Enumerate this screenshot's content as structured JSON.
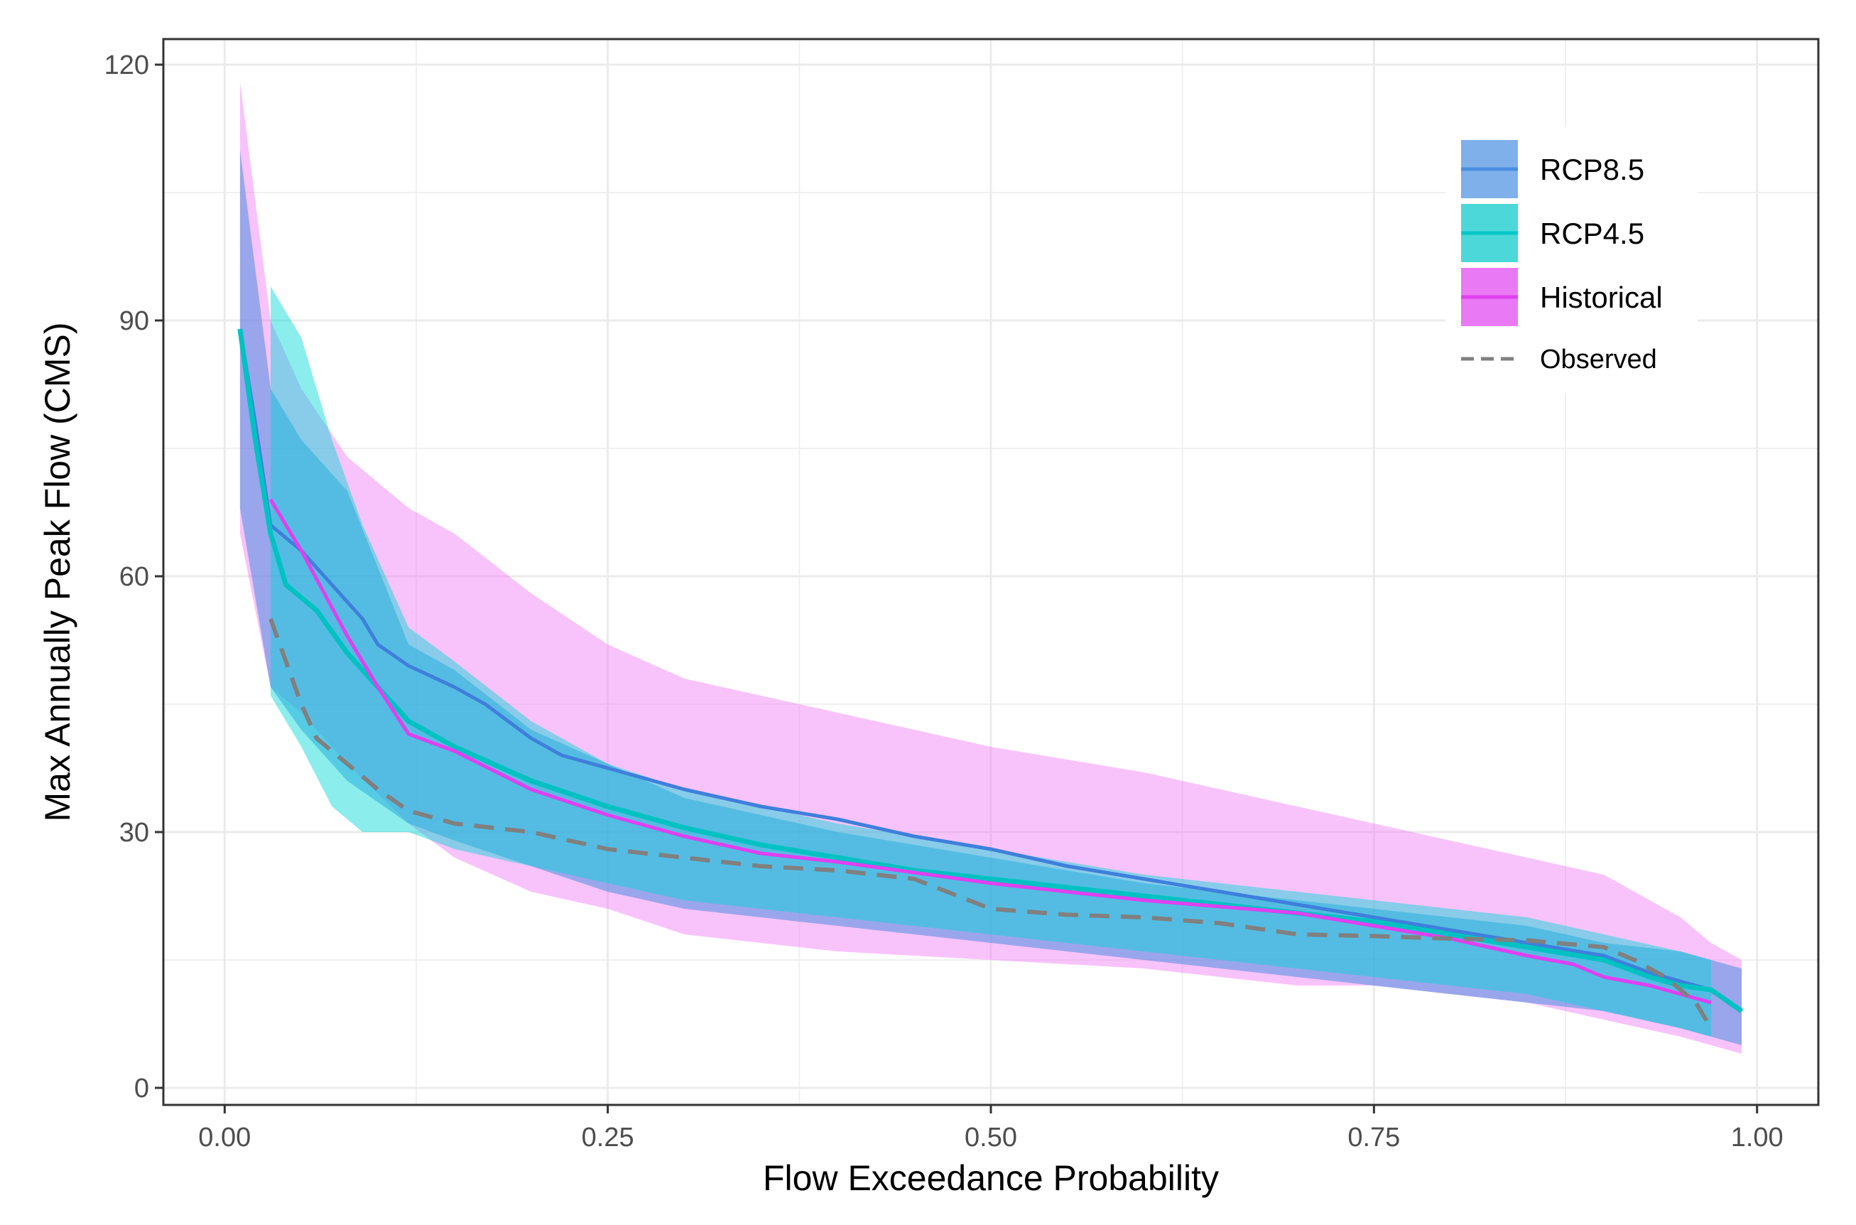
{
  "chart_data": {
    "type": "line",
    "title": "",
    "xlabel": "Flow Exceedance Probability",
    "ylabel": "Max Annually Peak Flow (CMS)",
    "xlim": [
      -0.04,
      1.04
    ],
    "ylim": [
      -2,
      123
    ],
    "xticks": [
      0,
      0.25,
      0.5,
      0.75,
      1
    ],
    "xtick_labels": [
      "0.00",
      "0.25",
      "0.50",
      "0.75",
      "1.00"
    ],
    "yticks": [
      0,
      30,
      60,
      90,
      120
    ],
    "ytick_labels": [
      "0",
      "30",
      "60",
      "90",
      "120"
    ],
    "grid": true,
    "legend_position": "top-right",
    "legend": [
      {
        "key": "rcp85",
        "label": "RCP8.5",
        "color": "#4a8ee0",
        "kind": "ribbon-line"
      },
      {
        "key": "rcp45",
        "label": "RCP4.5",
        "color": "#00c8c8",
        "kind": "ribbon-line"
      },
      {
        "key": "historical",
        "label": "Historical",
        "color": "#e040f0",
        "kind": "ribbon-line"
      },
      {
        "key": "observed",
        "label": "Observed",
        "color": "#808080",
        "kind": "dashed-line"
      }
    ],
    "series": [
      {
        "name": "Historical",
        "color": "#e040f0",
        "fill": "#f07af5",
        "fill_opacity": 0.45,
        "line_width": 5,
        "x": [
          0.01,
          0.03,
          0.05,
          0.08,
          0.12,
          0.15,
          0.2,
          0.25,
          0.3,
          0.4,
          0.5,
          0.6,
          0.7,
          0.75,
          0.8,
          0.85,
          0.9,
          0.95,
          0.97,
          0.99
        ],
        "lower": [
          65,
          47,
          44,
          38,
          31,
          27,
          23,
          21,
          18,
          16,
          15,
          14,
          12,
          12,
          11,
          10,
          8,
          6,
          5,
          4
        ],
        "upper": [
          118,
          90,
          82,
          74,
          68,
          65,
          58,
          52,
          48,
          44,
          40,
          37,
          33,
          31,
          29,
          27,
          25,
          20,
          17,
          15
        ]
      },
      {
        "name": "RCP8.5",
        "color": "#3f7fdc",
        "fill": "#4a8ee0",
        "fill_opacity": 0.55,
        "line_width": 5,
        "x": [
          0.01,
          0.03,
          0.05,
          0.08,
          0.12,
          0.15,
          0.2,
          0.25,
          0.3,
          0.4,
          0.5,
          0.6,
          0.7,
          0.75,
          0.8,
          0.85,
          0.9,
          0.95,
          0.97,
          0.99
        ],
        "lower": [
          68,
          47,
          42,
          36,
          31,
          29,
          26,
          23,
          21,
          19,
          17,
          15,
          13,
          12,
          11,
          10,
          9,
          7,
          6,
          5
        ],
        "upper": [
          110,
          82,
          76,
          70,
          52,
          49,
          42,
          38,
          34,
          30,
          27,
          24,
          22,
          21,
          20,
          19,
          17,
          16,
          15,
          14
        ]
      },
      {
        "name": "RCP4.5",
        "color": "#00c2c2",
        "fill": "#00d6d6",
        "fill_opacity": 0.45,
        "line_width": 7,
        "x": [
          0.03,
          0.05,
          0.07,
          0.09,
          0.12,
          0.15,
          0.2,
          0.25,
          0.3,
          0.4,
          0.5,
          0.6,
          0.7,
          0.75,
          0.8,
          0.85,
          0.9,
          0.95,
          0.97
        ],
        "lower": [
          46,
          40,
          33,
          30,
          30,
          28,
          26,
          24,
          22,
          20,
          18,
          16,
          14,
          13,
          12,
          11,
          9,
          7,
          6
        ],
        "upper": [
          94,
          88,
          76,
          66,
          54,
          50,
          43,
          38,
          35,
          31,
          28,
          25,
          23,
          22,
          21,
          20,
          18,
          16,
          15
        ]
      },
      {
        "name": "RCP8.5 median",
        "color": "#3f7fdc",
        "line_width": 5,
        "x": [
          0.01,
          0.02,
          0.03,
          0.05,
          0.07,
          0.09,
          0.1,
          0.12,
          0.15,
          0.17,
          0.2,
          0.22,
          0.25,
          0.3,
          0.35,
          0.4,
          0.45,
          0.5,
          0.55,
          0.6,
          0.65,
          0.7,
          0.75,
          0.8,
          0.85,
          0.9,
          0.93,
          0.95,
          0.97,
          0.99
        ],
        "y": [
          89,
          78,
          66,
          63,
          59,
          55,
          52,
          49.5,
          47,
          45,
          41,
          39,
          37.5,
          35,
          33,
          31.5,
          29.5,
          28,
          26,
          24.5,
          23,
          21.5,
          20,
          18.5,
          17,
          15.5,
          13.5,
          12.5,
          11.5,
          9
        ]
      },
      {
        "name": "RCP4.5 median",
        "color": "#00c2c2",
        "line_width": 7,
        "x": [
          0.01,
          0.02,
          0.03,
          0.04,
          0.06,
          0.08,
          0.1,
          0.12,
          0.15,
          0.2,
          0.25,
          0.3,
          0.35,
          0.4,
          0.45,
          0.5,
          0.55,
          0.6,
          0.65,
          0.7,
          0.75,
          0.8,
          0.85,
          0.9,
          0.93,
          0.95,
          0.97,
          0.99
        ],
        "y": [
          89,
          76,
          65,
          59,
          56,
          51,
          47,
          43,
          40,
          36,
          33,
          30.5,
          28.5,
          27,
          25.5,
          24.5,
          23.5,
          22.5,
          21.5,
          20.5,
          19.5,
          18,
          16.5,
          15,
          13,
          12,
          11.5,
          9
        ]
      },
      {
        "name": "Historical median",
        "color": "#e040f0",
        "line_width": 5,
        "x": [
          0.03,
          0.05,
          0.08,
          0.1,
          0.12,
          0.15,
          0.2,
          0.25,
          0.3,
          0.35,
          0.4,
          0.5,
          0.6,
          0.7,
          0.75,
          0.8,
          0.85,
          0.88,
          0.9,
          0.93,
          0.95,
          0.97
        ],
        "y": [
          69,
          63,
          53,
          47,
          41.5,
          39.5,
          35,
          32,
          29.5,
          27.5,
          26.5,
          24,
          22,
          20.5,
          19,
          17.5,
          15.5,
          14.5,
          13,
          12,
          11,
          10
        ]
      },
      {
        "name": "Observed",
        "color": "#808080",
        "line_width": 6,
        "dash": "28 16",
        "x": [
          0.03,
          0.04,
          0.05,
          0.06,
          0.08,
          0.1,
          0.12,
          0.15,
          0.2,
          0.25,
          0.3,
          0.35,
          0.4,
          0.45,
          0.5,
          0.55,
          0.6,
          0.65,
          0.7,
          0.75,
          0.8,
          0.85,
          0.9,
          0.92,
          0.94,
          0.96,
          0.97
        ],
        "y": [
          55,
          50,
          45,
          41,
          38,
          35,
          32.5,
          31,
          30,
          28,
          27,
          26,
          25.5,
          24.5,
          21,
          20.3,
          20,
          19.3,
          18,
          17.8,
          17.5,
          17.3,
          16.5,
          15,
          13,
          10,
          7
        ]
      }
    ]
  }
}
